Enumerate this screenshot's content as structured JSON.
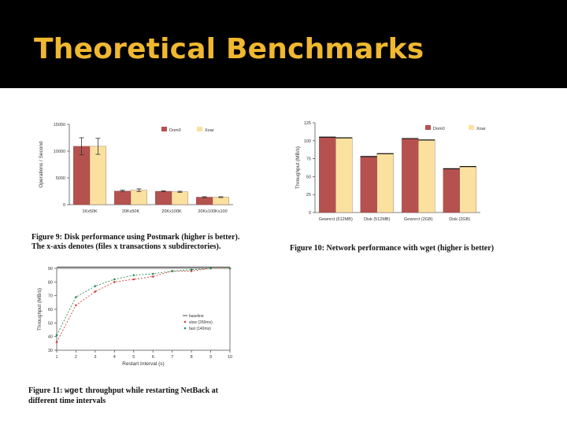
{
  "slide": {
    "title": "Theoretical Benchmarks"
  },
  "figures": {
    "fig9": {
      "label": "Figure 9:",
      "text": "Disk performance using Postmark (higher is better). The x-axis denotes (files x transactions x subdirectories)."
    },
    "fig10": {
      "label": "Figure 10:",
      "text": "Network performance with wget (higher is better)"
    },
    "fig11": {
      "label": "Figure 11:",
      "code": "wget",
      "text": "throughput while restarting NetBack at different time intervals"
    }
  },
  "colors": {
    "dom0": "#b5524f",
    "xoar": "#fbe1a0",
    "restart_10": "#d94040",
    "restart_1": "#2e8b57",
    "baseline": "#222222",
    "title": "#f0b830"
  },
  "chart_data": [
    {
      "id": "fig9",
      "type": "bar",
      "title": "",
      "ylabel": "Operations / Second",
      "ylim": [
        0,
        15000
      ],
      "yticks": [
        0,
        5000,
        10000,
        15000
      ],
      "categories": [
        "1Kx50K",
        "20Kx50K",
        "20Kx100K",
        "20Kx100Kx100"
      ],
      "series": [
        {
          "name": "Dom0",
          "values": [
            10900,
            2550,
            2500,
            1400
          ],
          "errors": [
            1600,
            150,
            100,
            80
          ]
        },
        {
          "name": "Xoar",
          "values": [
            10900,
            2700,
            2400,
            1400
          ],
          "errors": [
            1500,
            250,
            100,
            80
          ]
        }
      ],
      "legend": "top-right",
      "grid": false
    },
    {
      "id": "fig10",
      "type": "bar",
      "title": "",
      "ylabel": "Throughput (MB/s)",
      "ylim": [
        0,
        125
      ],
      "yticks": [
        0,
        25,
        50,
        75,
        100,
        125
      ],
      "categories": [
        "Wget (512MB)",
        "Disk (512MB)",
        "Wget (2GB)",
        "Disk (2GB)"
      ],
      "category_labels_raw": [
        "Gewnrct (512MB)",
        "Disk (512MB)",
        "Gewnrct (2GB)",
        "Disk (2GB)"
      ],
      "series": [
        {
          "name": "Dom0",
          "values": [
            105,
            78,
            103,
            61
          ]
        },
        {
          "name": "Xoar",
          "values": [
            104,
            82,
            101,
            64
          ]
        }
      ],
      "legend": "top-right",
      "grid": false
    },
    {
      "id": "fig11",
      "type": "line",
      "title": "",
      "xlabel": "Restart Interval (s)",
      "ylabel": "Throughput (MB/s)",
      "xlim": [
        1,
        10
      ],
      "ylim": [
        30,
        90
      ],
      "xticks": [
        1,
        2,
        3,
        4,
        5,
        6,
        7,
        8,
        9,
        10
      ],
      "yticks": [
        30,
        40,
        50,
        60,
        70,
        80,
        90
      ],
      "series": [
        {
          "name": "baseline",
          "x": [
            1,
            10
          ],
          "y": [
            91,
            91
          ]
        },
        {
          "name": "slow (260ms)",
          "x": [
            1,
            2,
            3,
            4,
            5,
            6,
            7,
            8,
            9,
            10
          ],
          "y": [
            36,
            63,
            73,
            80,
            82,
            84,
            88,
            88,
            90,
            90
          ]
        },
        {
          "name": "fast (140ms)",
          "x": [
            1,
            2,
            3,
            4,
            5,
            6,
            7,
            8,
            9,
            10
          ],
          "y": [
            41,
            69,
            77,
            82,
            85,
            86,
            88,
            89,
            90,
            90
          ]
        }
      ],
      "legend": "lower-right",
      "grid": false
    }
  ]
}
